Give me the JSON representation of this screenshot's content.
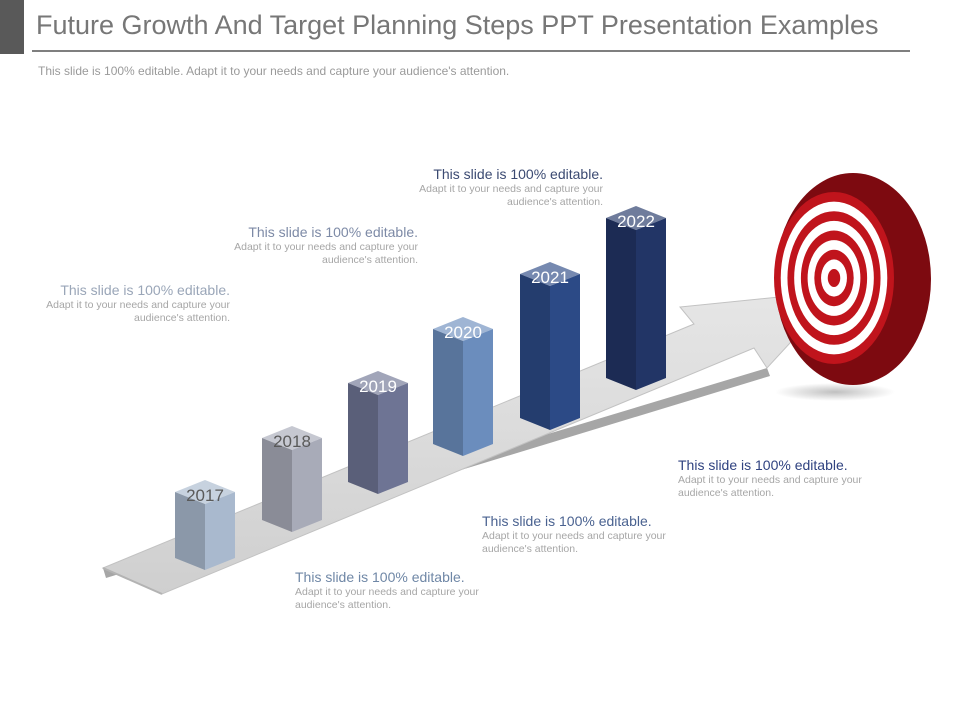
{
  "slide": {
    "title": "Future Growth And Target Planning Steps PPT Presentation Examples",
    "subtitle": "This slide is 100% editable. Adapt it to your needs and capture your audience's attention."
  },
  "diagram": {
    "bars": [
      {
        "year": "2017",
        "color": "#a9b9ce"
      },
      {
        "year": "2018",
        "color": "#a8abb8"
      },
      {
        "year": "2019",
        "color": "#6e7494"
      },
      {
        "year": "2020",
        "color": "#6b8dbd"
      },
      {
        "year": "2021",
        "color": "#2c4a86"
      },
      {
        "year": "2022",
        "color": "#223566"
      }
    ],
    "arrow_color": "#d4d4d4",
    "target_colors": {
      "red": "#c0141c",
      "white": "#ffffff"
    }
  },
  "labels": [
    {
      "title": "This slide is 100% editable.",
      "body": "Adapt it to your needs and capture your audience's attention.",
      "color": "#9aa6b8"
    },
    {
      "title": "This slide is 100% editable.",
      "body": "Adapt it to your needs and capture your audience's attention.",
      "color": "#7d8aa6"
    },
    {
      "title": "This slide is 100% editable.",
      "body": "Adapt it to your needs and capture your audience's attention.",
      "color": "#3b4a72"
    },
    {
      "title": "This slide is 100% editable.",
      "body": "Adapt it to your needs and capture your audience's attention.",
      "color": "#6f87a6"
    },
    {
      "title": "This slide is 100% editable.",
      "body": "Adapt it to your needs and capture your audience's attention.",
      "color": "#4a6290"
    },
    {
      "title": "This slide is 100% editable.",
      "body": "Adapt it to your needs and capture your audience's attention.",
      "color": "#2f4280"
    }
  ]
}
